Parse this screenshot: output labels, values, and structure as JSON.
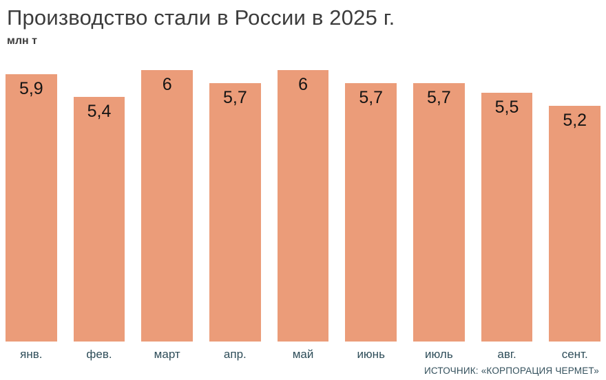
{
  "chart": {
    "title": "Производство стали в России в 2025 г.",
    "unit_label": "млн т",
    "source": "ИСТОЧНИК: «КОРПОРАЦИЯ ЧЕРМЕТ»"
  },
  "chart_data": {
    "type": "bar",
    "title": "Производство стали в России в 2025 г.",
    "xlabel": "",
    "ylabel": "млн т",
    "categories": [
      "янв.",
      "фев.",
      "март",
      "апр.",
      "май",
      "июнь",
      "июль",
      "авг.",
      "сент."
    ],
    "values": [
      5.9,
      5.4,
      6,
      5.7,
      6,
      5.7,
      5.7,
      5.5,
      5.2
    ],
    "value_labels": [
      "5,9",
      "5,4",
      "6",
      "5,7",
      "6",
      "5,7",
      "5,7",
      "5,5",
      "5,2"
    ],
    "ylim": [
      0,
      6.1
    ],
    "grid": false,
    "legend": false,
    "bar_color": "#eb9c79",
    "value_label_color": "#141414",
    "axis_label_color": "#2e4d59"
  }
}
